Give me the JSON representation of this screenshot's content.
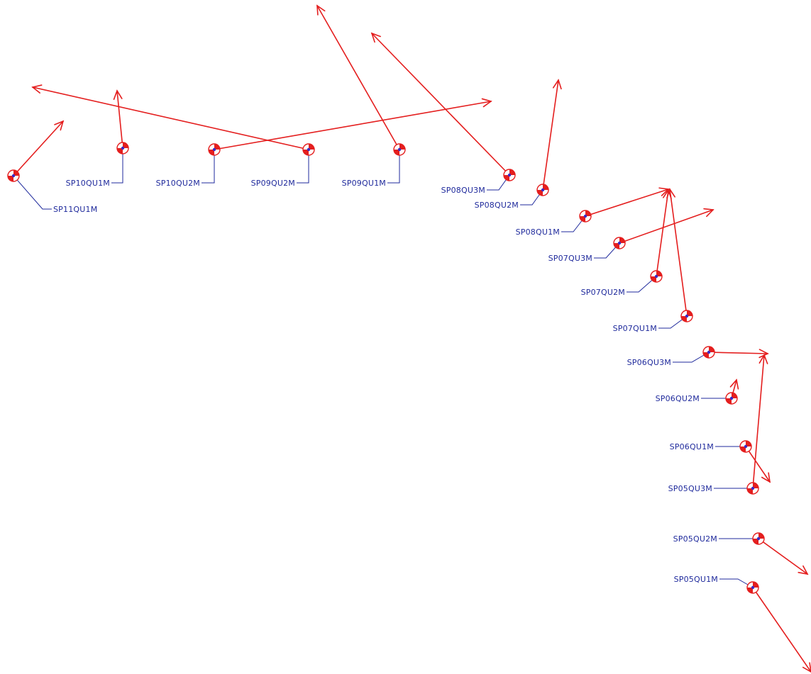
{
  "colors": {
    "background": "#ffffff",
    "vector": "#e41e1e",
    "label": "#1f2a9c",
    "leader": "#1f2a9c",
    "marker_fill_red": "#e41e1e",
    "marker_fill_white": "#ffffff",
    "marker_center": "#3b2bc4"
  },
  "marker_icon": "survey-point-quadrant-icon",
  "arrow_icon": "arrowhead-icon",
  "stations": [
    {
      "id": "SP11QU1M"
    },
    {
      "id": "SP10QU1M"
    },
    {
      "id": "SP10QU2M"
    },
    {
      "id": "SP09QU2M"
    },
    {
      "id": "SP09QU1M"
    },
    {
      "id": "SP08QU3M"
    },
    {
      "id": "SP08QU2M"
    },
    {
      "id": "SP08QU1M"
    },
    {
      "id": "SP07QU3M"
    },
    {
      "id": "SP07QU2M"
    },
    {
      "id": "SP07QU1M"
    },
    {
      "id": "SP06QU3M"
    },
    {
      "id": "SP06QU2M"
    },
    {
      "id": "SP06QU1M"
    },
    {
      "id": "SP05QU3M"
    },
    {
      "id": "SP05QU2M"
    },
    {
      "id": "SP05QU1M"
    }
  ]
}
